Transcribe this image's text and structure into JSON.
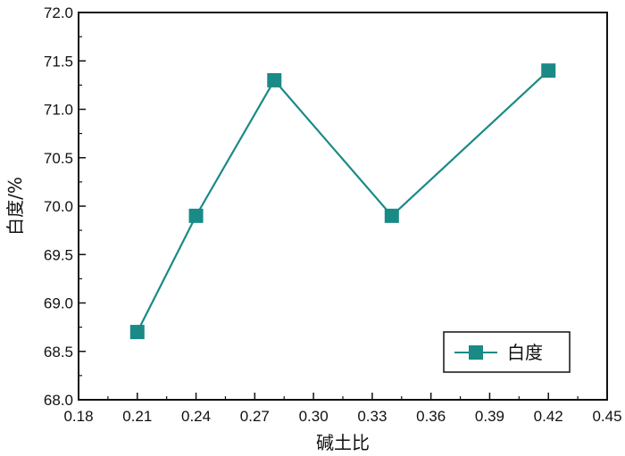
{
  "chart_data": {
    "type": "line",
    "title": "",
    "xlabel": "碱土比",
    "ylabel": "白度/%",
    "xlim": [
      0.18,
      0.45
    ],
    "ylim": [
      68.0,
      72.0
    ],
    "xticks": [
      "0.18",
      "0.21",
      "0.24",
      "0.27",
      "0.30",
      "0.33",
      "0.36",
      "0.39",
      "0.42",
      "0.45"
    ],
    "yticks": [
      "68.0",
      "68.5",
      "69.0",
      "69.5",
      "70.0",
      "70.5",
      "71.0",
      "71.5",
      "72.0"
    ],
    "grid": false,
    "legend_position": "bottom-right",
    "series": [
      {
        "name": "白度",
        "color": "#1a8a87",
        "marker": "square",
        "x": [
          0.21,
          0.24,
          0.28,
          0.34,
          0.42
        ],
        "y": [
          68.7,
          69.9,
          71.3,
          69.9,
          71.4
        ]
      }
    ]
  }
}
